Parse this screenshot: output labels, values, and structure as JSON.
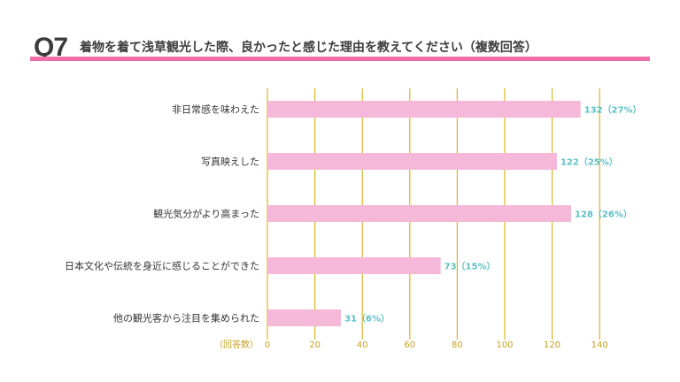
{
  "question": {
    "number": "Q7",
    "text": "着物を着て浅草観光した際、良かったと感じた理由を教えてください（複数回答）"
  },
  "colors": {
    "title_bar": "#f06fa9",
    "bar": "#f6b8d8",
    "gridline": "#d8b62a",
    "value_label": "#5cc0c4",
    "tick_label": "#c8a020"
  },
  "chart_data": {
    "type": "bar",
    "orientation": "horizontal",
    "categories": [
      "非日常感を味わえた",
      "写真映えした",
      "観光気分がより高まった",
      "日本文化や伝統を身近に感じることができた",
      "他の観光客から注目を集められた"
    ],
    "values": [
      132,
      122,
      128,
      73,
      31
    ],
    "data_labels": [
      "132（27%）",
      "122（25%）",
      "128（26%）",
      "73（15%）",
      "31（6%）"
    ],
    "xlabel": "（回答数）",
    "xlim": [
      0,
      140
    ],
    "xticks": [
      0,
      20,
      40,
      60,
      80,
      100,
      120,
      140
    ],
    "xtick_labels": [
      "0",
      "20",
      "40",
      "60",
      "80",
      "100",
      "120",
      "140"
    ],
    "grid": true
  }
}
